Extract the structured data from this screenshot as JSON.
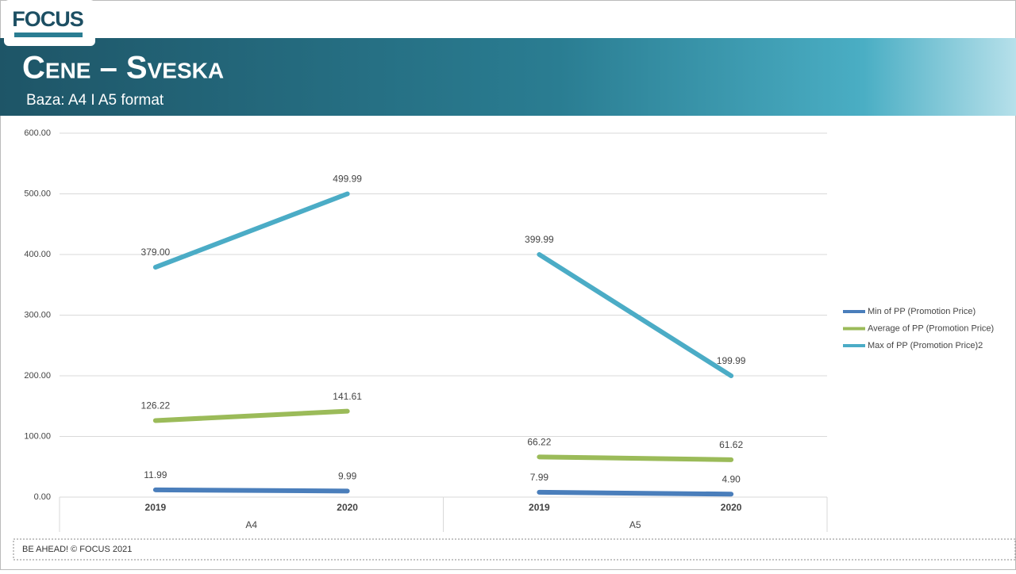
{
  "header": {
    "logo": "FOCUS",
    "title": "Cene – Sveska",
    "subtitle": "Baza: A4 I A5 format"
  },
  "chart_data": {
    "type": "line",
    "categories": [
      "2019",
      "2020",
      "2019",
      "2020"
    ],
    "groups": [
      "A4",
      "A5"
    ],
    "series": [
      {
        "name": "Min of PP (Promotion Price)",
        "color": "#4a7ebb",
        "values": [
          11.99,
          9.99,
          7.99,
          4.9
        ],
        "value_labels": [
          "11.99",
          "9.99",
          "7.99",
          "4.90"
        ]
      },
      {
        "name": "Average of PP (Promotion Price)",
        "color": "#9bbb59",
        "values": [
          126.22,
          141.61,
          66.22,
          61.62
        ],
        "value_labels": [
          "126.22",
          "141.61",
          "66.22",
          "61.62"
        ]
      },
      {
        "name": "Max of PP (Promotion Price)2",
        "color": "#4bacc6",
        "values": [
          379,
          499.99,
          399.99,
          199.99
        ],
        "value_labels": [
          "379.00",
          "499.99",
          "399.99",
          "199.99"
        ]
      }
    ],
    "ylim": [
      0,
      600
    ],
    "yticks": [
      {
        "value": 0,
        "label": "0.00"
      },
      {
        "value": 100,
        "label": "100.00"
      },
      {
        "value": 200,
        "label": "200.00"
      },
      {
        "value": 300,
        "label": "300.00"
      },
      {
        "value": 400,
        "label": "400.00"
      },
      {
        "value": 500,
        "label": "500.00"
      },
      {
        "value": 600,
        "label": "600.00"
      }
    ],
    "grid": true,
    "legend": "right"
  },
  "footer": "BE AHEAD! © FOCUS 2021"
}
